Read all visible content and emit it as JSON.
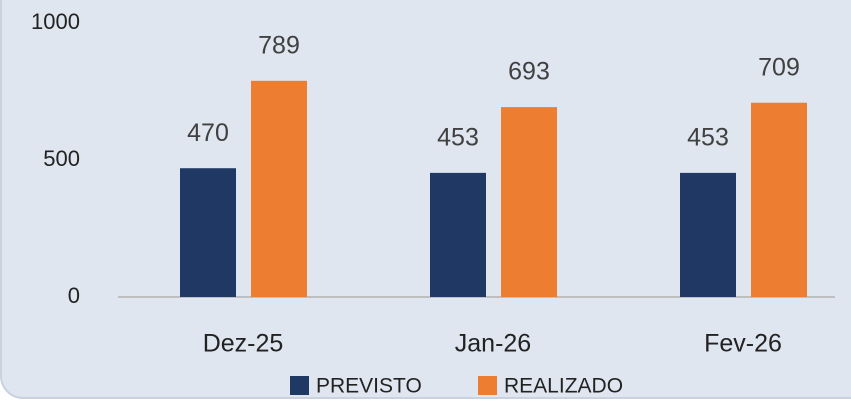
{
  "chart_data": {
    "type": "bar",
    "categories": [
      "Dez-25",
      "Jan-26",
      "Fev-26"
    ],
    "series": [
      {
        "name": "PREVISTO",
        "color": "#203864",
        "values": [
          470,
          453,
          453
        ]
      },
      {
        "name": "REALIZADO",
        "color": "#ed7d31",
        "values": [
          789,
          693,
          709
        ]
      }
    ],
    "ylim": [
      0,
      1000
    ],
    "yticks": [
      0,
      500,
      1000
    ],
    "grid": false,
    "legend": "bottom"
  }
}
